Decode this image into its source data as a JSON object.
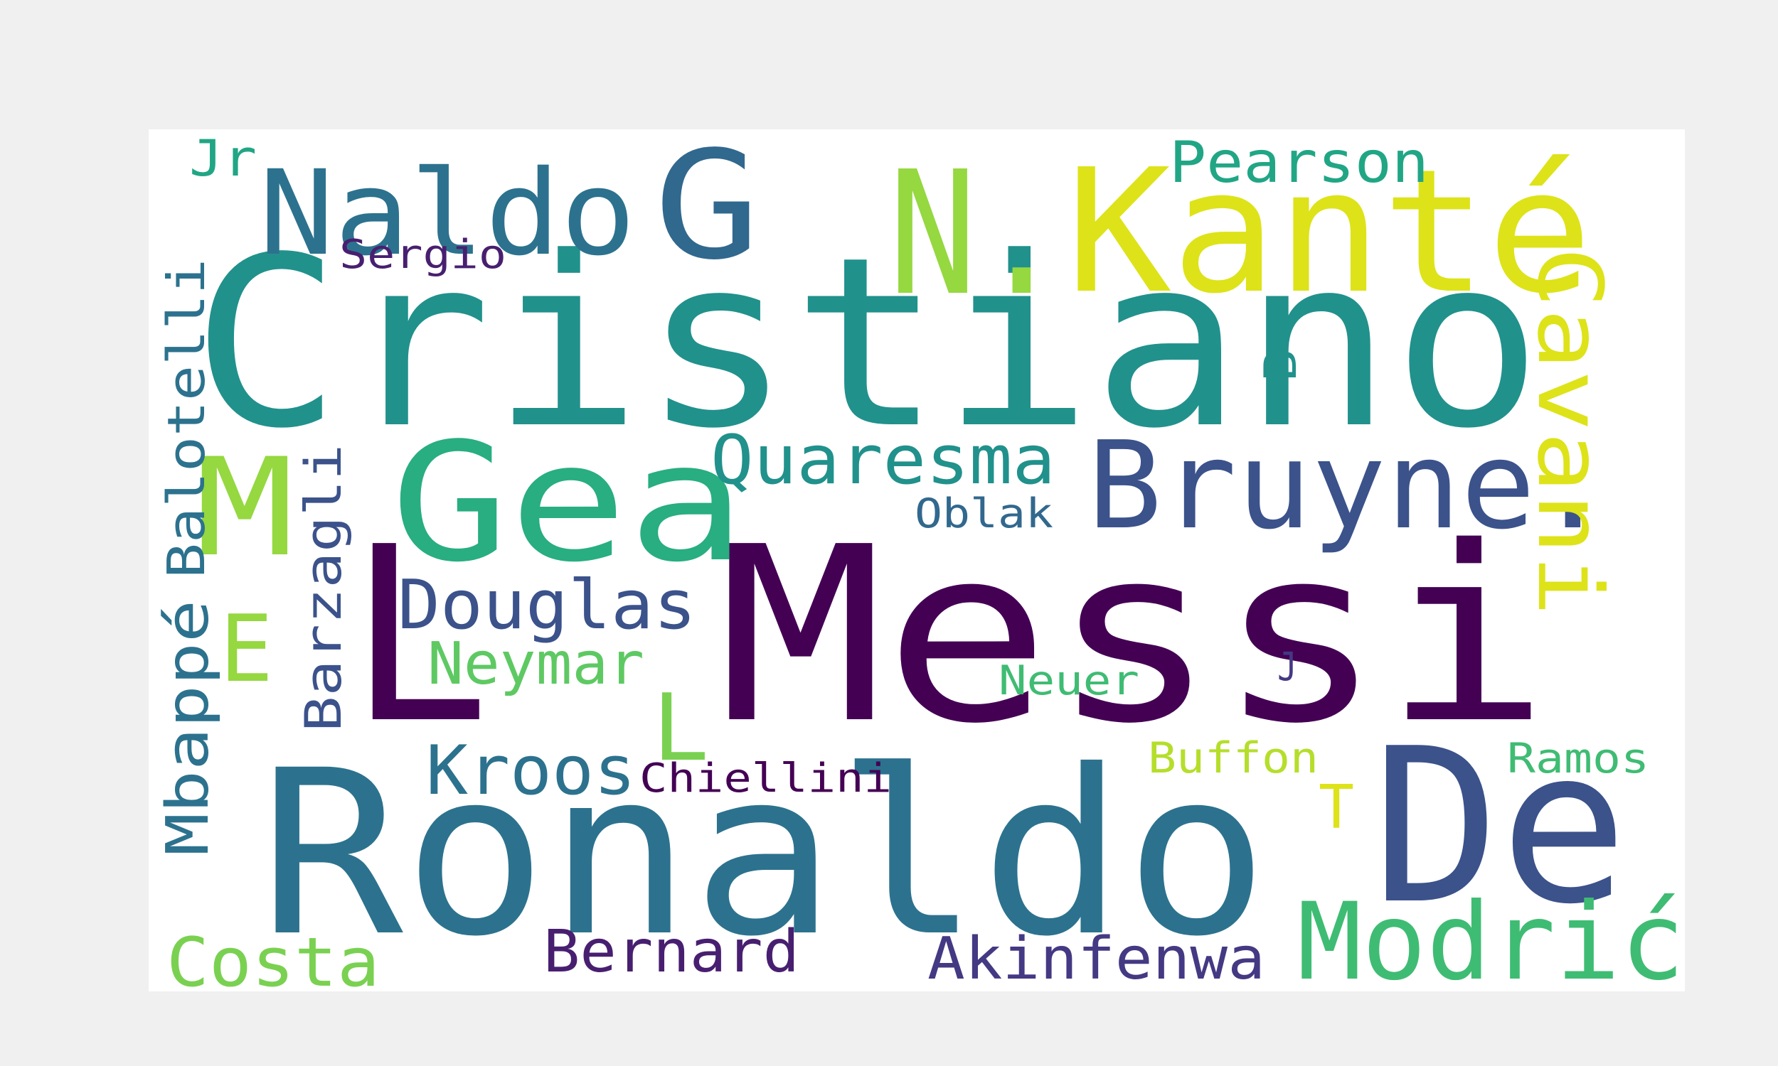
{
  "background_color": "#ffffff",
  "page_color": "#f0f0f0",
  "words": [
    {
      "key": "messi",
      "text": "Messi",
      "color": "#440154"
    },
    {
      "key": "ronaldo",
      "text": "Ronaldo",
      "color": "#2c728e"
    },
    {
      "key": "cristiano",
      "text": "Cristiano",
      "color": "#21918c"
    },
    {
      "key": "l-large",
      "text": "L",
      "color": "#440154"
    },
    {
      "key": "de",
      "text": "De",
      "color": "#3b528b"
    },
    {
      "key": "kante",
      "text": "Kanté",
      "color": "#dde318"
    },
    {
      "key": "gea",
      "text": "Gea",
      "color": "#28ae80"
    },
    {
      "key": "n-dot",
      "text": "N.",
      "color": "#95d840"
    },
    {
      "key": "bruyne",
      "text": "Bruyne.",
      "color": "#3b528b"
    },
    {
      "key": "m",
      "text": "M",
      "color": "#95d840"
    },
    {
      "key": "naldo",
      "text": "Naldo",
      "color": "#2c728e"
    },
    {
      "key": "g",
      "text": "G",
      "color": "#31688e"
    },
    {
      "key": "modric",
      "text": "Modrić",
      "color": "#3fbc73"
    },
    {
      "key": "cavani",
      "text": "Cavani",
      "color": "#dde318"
    },
    {
      "key": "quaresma",
      "text": "Quaresma",
      "color": "#21918c"
    },
    {
      "key": "douglas",
      "text": "Douglas",
      "color": "#3b528b"
    },
    {
      "key": "pearson",
      "text": "Pearson",
      "color": "#21a685"
    },
    {
      "key": "e",
      "text": "E",
      "color": "#95d840"
    },
    {
      "key": "l-small",
      "text": "L",
      "color": "#7ad151"
    },
    {
      "key": "kroos",
      "text": "Kroos",
      "color": "#2c728e"
    },
    {
      "key": "neymar",
      "text": "Neymar",
      "color": "#5ec962"
    },
    {
      "key": "costa",
      "text": "Costa",
      "color": "#7ad151"
    },
    {
      "key": "bernard",
      "text": "Bernard",
      "color": "#481f70"
    },
    {
      "key": "akinfenwa",
      "text": "Akinfenwa",
      "color": "#443983"
    },
    {
      "key": "balotelli",
      "text": "Balotelli",
      "color": "#2c728e"
    },
    {
      "key": "mbappe",
      "text": "Mbappé",
      "color": "#2c728e"
    },
    {
      "key": "barzagli",
      "text": "Barzagli",
      "color": "#3b528b"
    },
    {
      "key": "chiellini",
      "text": "Chiellini",
      "color": "#440154"
    },
    {
      "key": "buffon",
      "text": "Buffon",
      "color": "#b5de2b"
    },
    {
      "key": "ramos",
      "text": "Ramos",
      "color": "#3fbc73"
    },
    {
      "key": "oblak",
      "text": "Oblak",
      "color": "#31688e"
    },
    {
      "key": "neuer",
      "text": "Neuer",
      "color": "#3fbc73"
    },
    {
      "key": "sergio",
      "text": "Sergio",
      "color": "#481f70"
    },
    {
      "key": "jr",
      "text": "Jr",
      "color": "#21a685"
    },
    {
      "key": "b",
      "text": "B",
      "color": "#21918c"
    },
    {
      "key": "j",
      "text": "J",
      "color": "#443983"
    },
    {
      "key": "t",
      "text": "T",
      "color": "#dde318"
    }
  ]
}
